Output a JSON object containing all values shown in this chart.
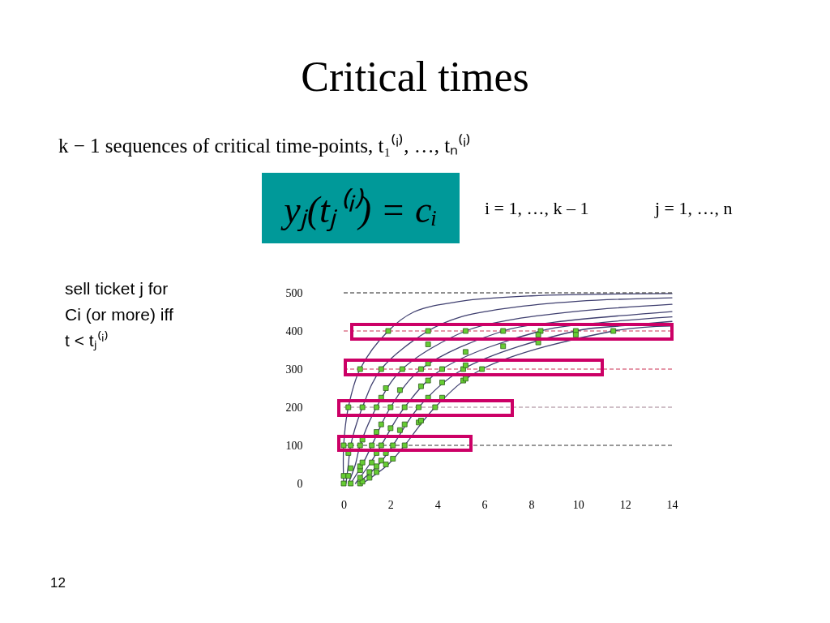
{
  "chart_data": {
    "type": "line",
    "title": "Critical times",
    "annotations": [
      "k − 1 sequences of critical time-points, t₁⁽ⁱ⁾, …, tₙ⁽ⁱ⁾",
      "yⱼ(tⱼ⁽ⁱ⁾) = cᵢ",
      "i = 1, …, k – 1",
      "j = 1, …, n",
      "sell ticket j for\nCi (or more) iff\nt < tⱼ⁽ⁱ⁾",
      "12"
    ],
    "xlim": [
      0,
      14
    ],
    "xticks": [
      0,
      2,
      4,
      6,
      8,
      10,
      12,
      14
    ],
    "ylim": [
      0,
      500
    ],
    "yticks": [
      0,
      100,
      200,
      300,
      400,
      500
    ],
    "ref_lines": [
      {
        "axis": "y",
        "value": 100,
        "color": "#333333",
        "line_style": "dashed"
      },
      {
        "axis": "y",
        "value": 200,
        "color": "#a08090",
        "line_style": "dashed"
      },
      {
        "axis": "y",
        "value": 300,
        "color": "#cc3355",
        "line_style": "dashed"
      },
      {
        "axis": "y",
        "value": 400,
        "color": "#cc3355",
        "line_style": "dashed"
      },
      {
        "axis": "y",
        "value": 500,
        "color": "#222222",
        "line_style": "dashed"
      }
    ],
    "series": [
      {
        "color": "#404070",
        "x": [
          0,
          0,
          0.2,
          0.7,
          1.9,
          3,
          5,
          8,
          14
        ],
        "values": [
          0,
          100,
          200,
          300,
          400,
          450,
          478,
          492,
          498
        ]
      },
      {
        "color": "#404070",
        "x": [
          0.1,
          0.2,
          0.3,
          0.8,
          1.6,
          3.6,
          5,
          7,
          10,
          14
        ],
        "values": [
          0,
          50,
          100,
          200,
          300,
          400,
          437,
          460,
          478,
          487
        ]
      },
      {
        "color": "#404070",
        "x": [
          0.2,
          0.5,
          0.7,
          1.4,
          2.5,
          5.2,
          7,
          10,
          14
        ],
        "values": [
          0,
          50,
          100,
          200,
          300,
          400,
          428,
          452,
          470
        ]
      },
      {
        "color": "#404070",
        "x": [
          0.3,
          0.8,
          1.2,
          2.0,
          3.3,
          6.8,
          9,
          14
        ],
        "values": [
          0,
          50,
          100,
          200,
          300,
          400,
          423,
          451
        ]
      },
      {
        "color": "#404070",
        "x": [
          0.5,
          1.1,
          1.6,
          2.6,
          4.2,
          8.4,
          11,
          14
        ],
        "values": [
          0,
          50,
          100,
          200,
          300,
          400,
          422,
          437
        ]
      },
      {
        "color": "#404070",
        "x": [
          0.6,
          1.5,
          2.1,
          3.2,
          5.1,
          9.9,
          12,
          14
        ],
        "values": [
          0,
          50,
          100,
          200,
          300,
          400,
          414,
          425
        ]
      },
      {
        "color": "#404070",
        "x": [
          0.8,
          1.9,
          2.6,
          3.9,
          5.9,
          11.5,
          14
        ],
        "values": [
          0,
          50,
          100,
          200,
          300,
          400,
          413
        ]
      },
      {
        "type": "scatter",
        "marker": "square",
        "color": "#66cc33",
        "x": [
          0,
          0.3,
          0.7,
          1.2,
          1.6,
          2.1,
          2.6,
          0.2,
          0.8,
          1.4,
          2.0,
          2.6,
          3.2,
          3.9,
          0.7,
          1.6,
          2.5,
          3.3,
          4.2,
          5.1,
          5.9,
          1.9,
          3.6,
          5.2,
          6.8,
          8.4,
          9.9,
          11.5,
          0,
          0.3,
          0.7,
          0.8,
          0,
          0.2,
          0.7,
          1.1,
          0.3,
          0.7,
          1.1,
          1.4,
          0.7,
          1.4,
          1.8,
          0.8,
          1.2,
          1.6,
          2.1,
          0.2,
          1.4,
          1.8,
          0.8,
          1.4,
          1.6,
          2.0,
          2.4,
          2.6,
          3.2,
          3.3,
          1.6,
          1.8,
          2.4,
          3.6,
          3.3,
          3.6,
          4.2,
          4.2,
          5.1,
          5.2,
          3.6,
          5.2,
          3.6,
          5.2,
          6.8,
          8.3,
          8.3,
          9.9
        ],
        "values": [
          100,
          100,
          100,
          100,
          100,
          100,
          100,
          200,
          200,
          200,
          200,
          200,
          200,
          200,
          300,
          300,
          300,
          300,
          300,
          300,
          300,
          400,
          400,
          400,
          400,
          400,
          400,
          400,
          0,
          0,
          0,
          5,
          20,
          20,
          15,
          15,
          40,
          35,
          30,
          30,
          45,
          45,
          50,
          55,
          55,
          60,
          65,
          80,
          80,
          80,
          115,
          135,
          155,
          145,
          140,
          155,
          160,
          165,
          225,
          250,
          245,
          225,
          255,
          270,
          225,
          265,
          270,
          275,
          315,
          310,
          365,
          345,
          360,
          370,
          390,
          390
        ]
      }
    ]
  }
}
